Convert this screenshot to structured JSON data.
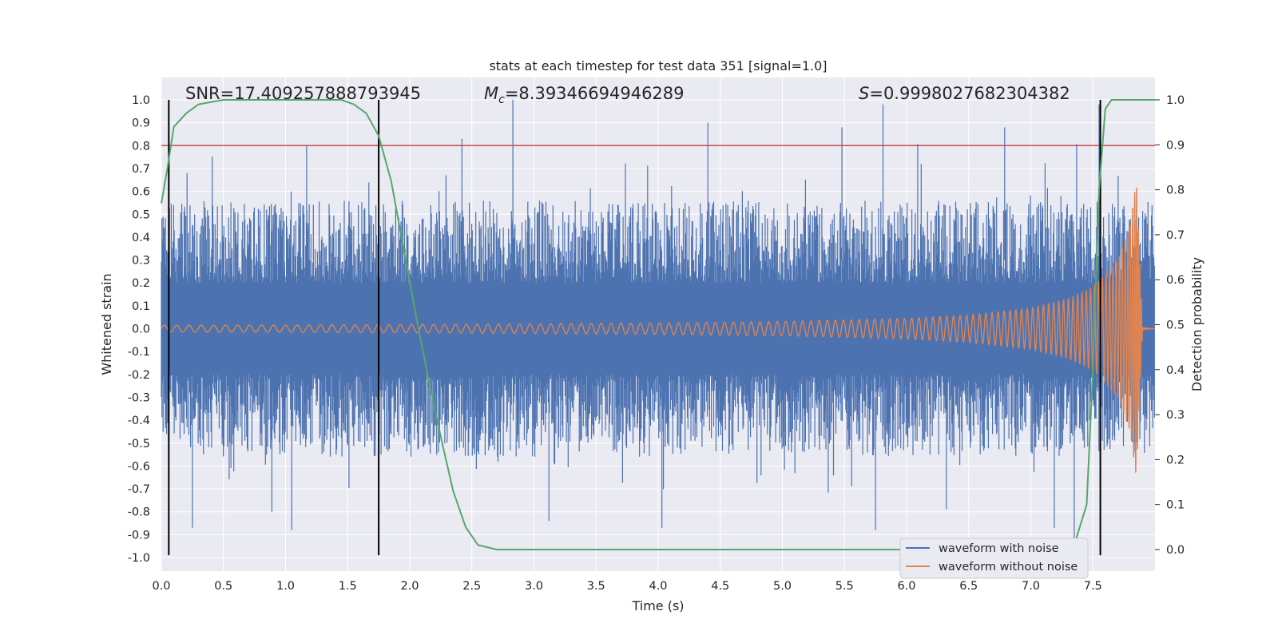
{
  "chart_data": {
    "type": "line",
    "title": "stats at each timestep for test data 351 [signal=1.0]",
    "xlabel": "Time (s)",
    "ylabel": "Whitened strain",
    "y2label": "Detection probability",
    "xlim": [
      0.0,
      8.0
    ],
    "ylim": [
      -1.05,
      1.08
    ],
    "y2lim": [
      -0.05,
      1.0
    ],
    "xticks": [
      "0.0",
      "0.5",
      "1.0",
      "1.5",
      "2.0",
      "2.5",
      "3.0",
      "3.5",
      "4.0",
      "4.5",
      "5.0",
      "5.5",
      "6.0",
      "6.5",
      "7.0",
      "7.5"
    ],
    "yticks": [
      "1.0",
      "0.9",
      "0.8",
      "0.7",
      "0.6",
      "0.5",
      "0.4",
      "0.3",
      "0.2",
      "0.1",
      "0.0",
      "-0.1",
      "-0.2",
      "-0.3",
      "-0.4",
      "-0.5",
      "-0.6",
      "-0.7",
      "-0.8",
      "-0.9",
      "-1.0"
    ],
    "y2ticks": [
      "1.0",
      "0.9",
      "0.8",
      "0.7",
      "0.6",
      "0.5",
      "0.4",
      "0.3",
      "0.2",
      "0.1",
      "0.0"
    ],
    "threshold": 0.8,
    "threshold_color": "#c44e52",
    "vlines": [
      0.06,
      1.75,
      7.56
    ],
    "annotations": {
      "snr": "SNR=17.409257888793945",
      "mc_symbol": "M",
      "mc_sub": "c",
      "mc_value": "=8.39346694946289",
      "s_symbol": "S",
      "s_value": "=0.9998027682304382"
    },
    "series": [
      {
        "name": "waveform with noise",
        "color": "#4c72b0",
        "note": "dense noise band, typical peaks about ±0.5",
        "spike_times": [
          1.17,
          2.42,
          2.83,
          4.4,
          5.48,
          5.81,
          6.79,
          7.55
        ],
        "spike_values": [
          0.8,
          0.83,
          1.0,
          0.9,
          0.88,
          0.98,
          0.88,
          0.98
        ],
        "dip_times": [
          0.25,
          0.89,
          1.05,
          3.12,
          4.03,
          5.75,
          7.19,
          7.35
        ],
        "dip_values": [
          -0.87,
          -0.8,
          -0.88,
          -0.84,
          -0.87,
          -0.88,
          -0.87,
          -0.95
        ]
      },
      {
        "name": "waveform without noise",
        "color": "#dd8452",
        "note": "chirp signal, amplitude growing to merger near 7.85 s",
        "t": [
          0.0,
          1.0,
          2.0,
          3.0,
          4.0,
          5.0,
          6.0,
          6.5,
          7.0,
          7.3,
          7.5,
          7.7,
          7.8,
          7.85,
          7.9,
          7.95,
          8.0
        ],
        "amplitude": [
          0.015,
          0.016,
          0.018,
          0.021,
          0.025,
          0.031,
          0.045,
          0.06,
          0.09,
          0.13,
          0.18,
          0.3,
          0.45,
          0.65,
          0.005,
          0.002,
          0.0
        ]
      },
      {
        "name": "detection probability",
        "color": "#55a868",
        "axis": "right",
        "x": [
          0.0,
          0.05,
          0.1,
          0.2,
          0.3,
          0.5,
          1.0,
          1.45,
          1.55,
          1.65,
          1.75,
          1.85,
          1.95,
          2.05,
          2.15,
          2.25,
          2.35,
          2.45,
          2.55,
          2.7,
          3.0,
          5.0,
          7.0,
          7.2,
          7.35,
          7.45,
          7.5,
          7.55,
          7.6,
          7.65,
          8.0
        ],
        "y": [
          0.77,
          0.85,
          0.94,
          0.97,
          0.99,
          1.0,
          1.0,
          1.0,
          0.99,
          0.97,
          0.92,
          0.82,
          0.67,
          0.52,
          0.38,
          0.25,
          0.13,
          0.05,
          0.01,
          0.0,
          0.0,
          0.0,
          0.0,
          0.0,
          0.01,
          0.1,
          0.4,
          0.8,
          0.98,
          1.0,
          1.0
        ]
      }
    ],
    "legend": {
      "placement": "lower-right",
      "entries": [
        "waveform with noise",
        "waveform without noise"
      ]
    }
  }
}
